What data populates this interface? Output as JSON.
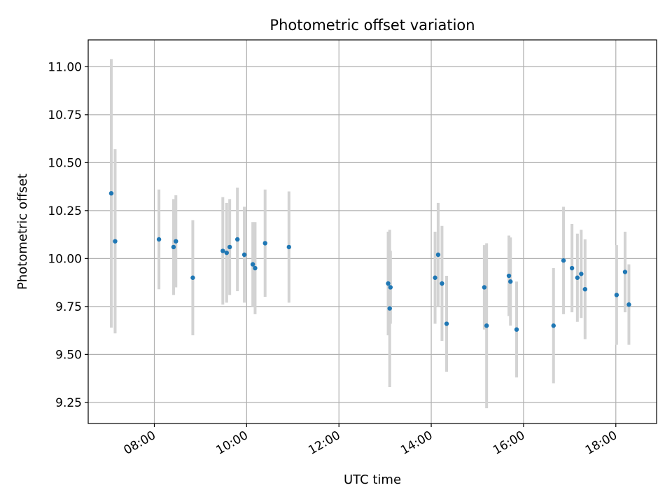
{
  "chart_data": {
    "type": "scatter",
    "title": "Photometric offset variation",
    "xlabel": "UTC time",
    "ylabel": "Photometric offset",
    "x_axis_kind": "time (hours UTC)",
    "xlim": [
      "06:34",
      "18:53"
    ],
    "ylim": [
      9.14,
      11.14
    ],
    "grid": true,
    "point_color": "#1f77b4",
    "errorbar_color": "#d3d3d3",
    "x_ticks": [
      "08:00",
      "10:00",
      "12:00",
      "14:00",
      "16:00",
      "18:00"
    ],
    "y_ticks": [
      "9.25",
      "9.50",
      "9.75",
      "10.00",
      "10.25",
      "10.50",
      "10.75",
      "11.00"
    ],
    "points": [
      {
        "x": "07:04",
        "y": 10.34,
        "err": 0.7
      },
      {
        "x": "07:09",
        "y": 10.09,
        "err": 0.48
      },
      {
        "x": "08:06",
        "y": 10.1,
        "err": 0.26
      },
      {
        "x": "08:25",
        "y": 10.06,
        "err": 0.25
      },
      {
        "x": "08:28",
        "y": 10.09,
        "err": 0.24
      },
      {
        "x": "08:50",
        "y": 9.9,
        "err": 0.3
      },
      {
        "x": "09:29",
        "y": 10.04,
        "err": 0.28
      },
      {
        "x": "09:34",
        "y": 10.03,
        "err": 0.26
      },
      {
        "x": "09:38",
        "y": 10.06,
        "err": 0.25
      },
      {
        "x": "09:48",
        "y": 10.1,
        "err": 0.27
      },
      {
        "x": "09:57",
        "y": 10.02,
        "err": 0.25
      },
      {
        "x": "10:08",
        "y": 9.97,
        "err": 0.22
      },
      {
        "x": "10:11",
        "y": 9.95,
        "err": 0.24
      },
      {
        "x": "10:24",
        "y": 10.08,
        "err": 0.28
      },
      {
        "x": "10:55",
        "y": 10.06,
        "err": 0.29
      },
      {
        "x": "13:04",
        "y": 9.87,
        "err": 0.27
      },
      {
        "x": "13:06",
        "y": 9.74,
        "err": 0.41
      },
      {
        "x": "13:07",
        "y": 9.85,
        "err": 0.19
      },
      {
        "x": "14:05",
        "y": 9.9,
        "err": 0.24
      },
      {
        "x": "14:09",
        "y": 10.02,
        "err": 0.27
      },
      {
        "x": "14:14",
        "y": 9.87,
        "err": 0.3
      },
      {
        "x": "14:20",
        "y": 9.66,
        "err": 0.25
      },
      {
        "x": "15:09",
        "y": 9.85,
        "err": 0.22
      },
      {
        "x": "15:12",
        "y": 9.65,
        "err": 0.43
      },
      {
        "x": "15:41",
        "y": 9.91,
        "err": 0.21
      },
      {
        "x": "15:43",
        "y": 9.88,
        "err": 0.23
      },
      {
        "x": "15:51",
        "y": 9.63,
        "err": 0.25
      },
      {
        "x": "16:39",
        "y": 9.65,
        "err": 0.3
      },
      {
        "x": "16:52",
        "y": 9.99,
        "err": 0.28
      },
      {
        "x": "17:03",
        "y": 9.95,
        "err": 0.23
      },
      {
        "x": "17:10",
        "y": 9.9,
        "err": 0.23
      },
      {
        "x": "17:15",
        "y": 9.92,
        "err": 0.23
      },
      {
        "x": "17:20",
        "y": 9.84,
        "err": 0.26
      },
      {
        "x": "18:01",
        "y": 9.81,
        "err": 0.26
      },
      {
        "x": "18:12",
        "y": 9.93,
        "err": 0.21
      },
      {
        "x": "18:17",
        "y": 9.76,
        "err": 0.21
      }
    ]
  }
}
